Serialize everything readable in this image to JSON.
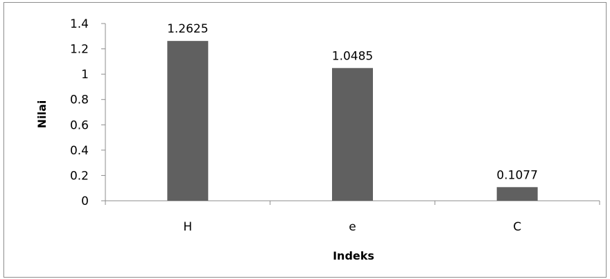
{
  "chart_data": {
    "type": "bar",
    "categories": [
      "H",
      "e",
      "C"
    ],
    "values": [
      1.2625,
      1.0485,
      0.1077
    ],
    "data_labels": [
      "1.2625",
      "1.0485",
      "0.1077"
    ],
    "xlabel": "Indeks",
    "ylabel": "Nilai",
    "ylim": [
      0,
      1.4
    ],
    "y_ticks": [
      0,
      0.2,
      0.4,
      0.6,
      0.8,
      1,
      1.2,
      1.4
    ],
    "y_tick_labels": [
      "0",
      "0.2",
      "0.4",
      "0.6",
      "0.8",
      "1",
      "1.2",
      "1.4"
    ],
    "grid": false,
    "legend": "none",
    "bar_color": "#606060"
  }
}
